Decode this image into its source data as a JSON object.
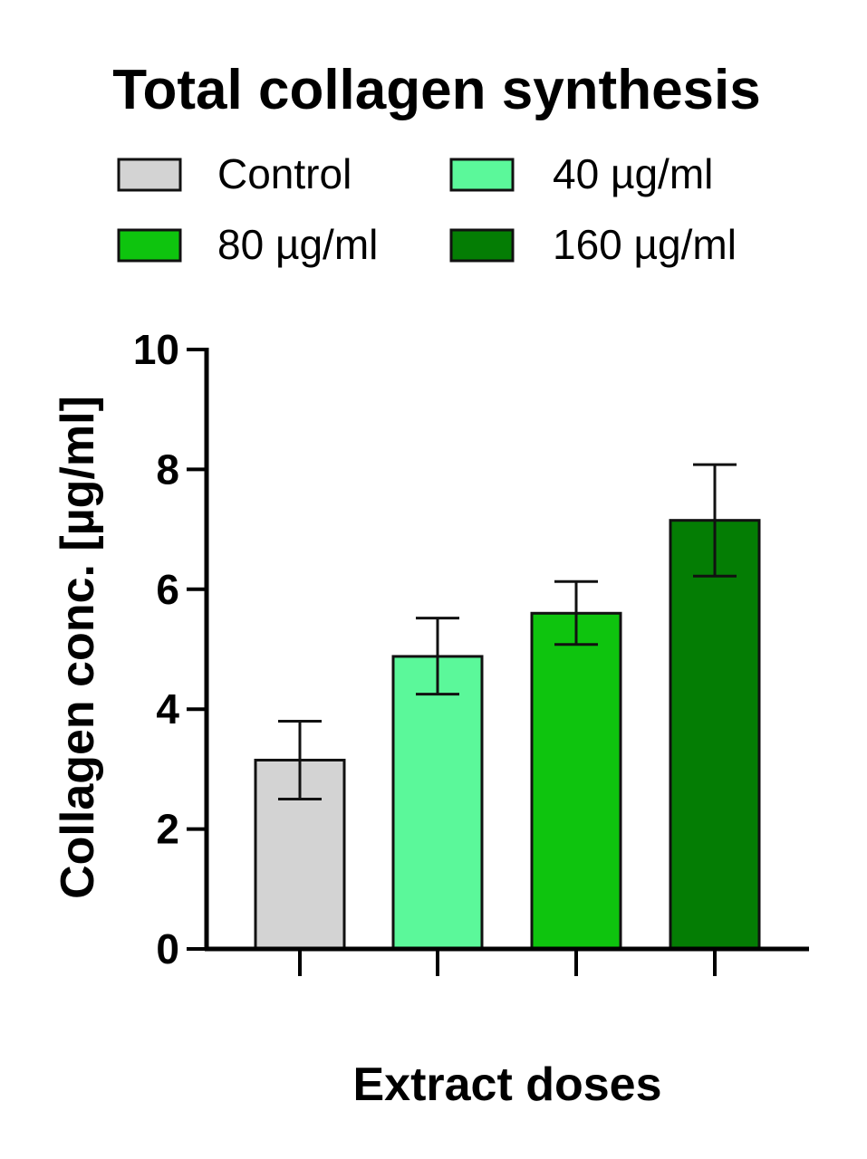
{
  "chart_data": {
    "type": "bar",
    "title": "Total collagen synthesis",
    "xlabel": "Extract doses",
    "ylabel": "Collagen conc. [µg/ml]",
    "ylim": [
      0,
      10
    ],
    "yticks": [
      "0",
      "2",
      "4",
      "6",
      "8",
      "10"
    ],
    "grid": false,
    "legend_position": "top",
    "categories": [
      "Control",
      "40 µg/ml",
      "80 µg/ml",
      "160 µg/ml"
    ],
    "values": [
      3.15,
      4.88,
      5.6,
      7.15
    ],
    "error": [
      [
        2.5,
        3.8
      ],
      [
        4.25,
        5.52
      ],
      [
        5.08,
        6.13
      ],
      [
        6.22,
        8.08
      ]
    ],
    "colors": [
      "#d3d3d3",
      "#5bf89a",
      "#0ec40e",
      "#047d04"
    ]
  }
}
